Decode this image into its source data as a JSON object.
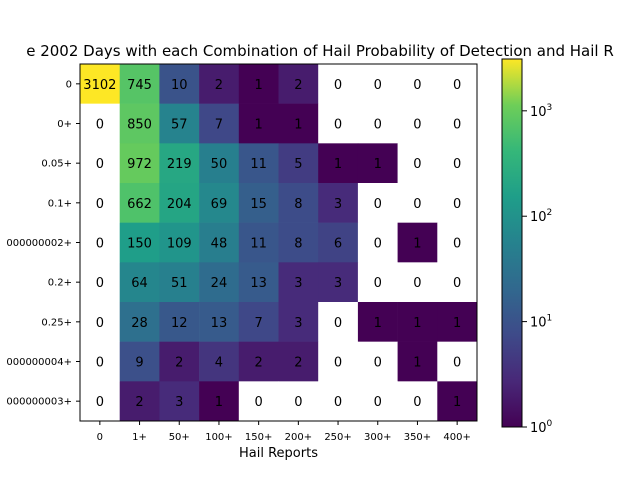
{
  "chart_data": {
    "type": "heatmap",
    "title": "e 2002 Days with each Combination of Hail Probability of Detection and Hail R",
    "xlabel": "Hail Reports",
    "ylabel": "",
    "x_categories": [
      "0",
      "1+",
      "50+",
      "100+",
      "150+",
      "200+",
      "250+",
      "300+",
      "350+",
      "400+"
    ],
    "y_categories": [
      "0",
      "0+",
      "0.05+",
      "0.1+",
      "000000002+",
      "0.2+",
      "0.25+",
      "000000004+",
      "000000003+"
    ],
    "values": [
      [
        3102,
        745,
        10,
        2,
        1,
        2,
        0,
        0,
        0,
        0
      ],
      [
        0,
        850,
        57,
        7,
        1,
        1,
        0,
        0,
        0,
        0
      ],
      [
        0,
        972,
        219,
        50,
        11,
        5,
        1,
        1,
        0,
        0
      ],
      [
        0,
        662,
        204,
        69,
        15,
        8,
        3,
        0,
        0,
        0
      ],
      [
        0,
        150,
        109,
        48,
        11,
        8,
        6,
        0,
        1,
        0
      ],
      [
        0,
        64,
        51,
        24,
        13,
        3,
        3,
        0,
        0,
        0
      ],
      [
        0,
        28,
        12,
        13,
        7,
        3,
        0,
        1,
        1,
        1
      ],
      [
        0,
        9,
        2,
        4,
        2,
        2,
        0,
        0,
        1,
        0
      ],
      [
        0,
        2,
        3,
        1,
        0,
        0,
        0,
        0,
        0,
        1
      ]
    ],
    "colormap": "viridis",
    "color_scale": "log",
    "colorbar_range": [
      1,
      3102
    ],
    "colorbar_ticks": [
      {
        "value": 1,
        "base": "10",
        "exp": "0"
      },
      {
        "value": 10,
        "base": "10",
        "exp": "1"
      },
      {
        "value": 100,
        "base": "10",
        "exp": "2"
      },
      {
        "value": 1000,
        "base": "10",
        "exp": "3"
      }
    ],
    "zero_cells_color": "#ffffff",
    "grid": false
  }
}
